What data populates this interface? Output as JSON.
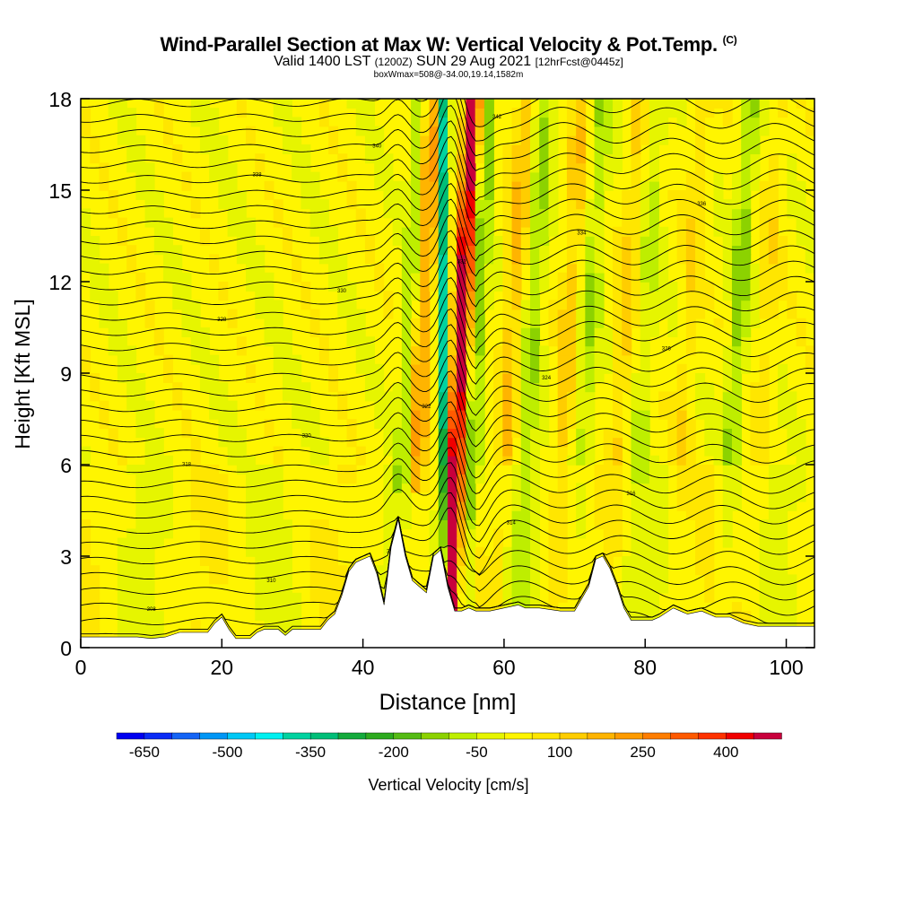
{
  "chart_data": {
    "type": "heatmap",
    "title": "Wind-Parallel Section at Max W: Vertical Velocity & Pot.Temp.",
    "title_mark": "(C)",
    "subtitle_valid": "Valid 1400 LST",
    "subtitle_utc": "(1200Z)",
    "subtitle_date": "SUN 29 Aug 2021",
    "subtitle_fcst": "[12hrFcst@0445z]",
    "box_info": "boxWmax=508@-34.00,19.14,1582m",
    "xlabel": "Distance [nm]",
    "ylabel": "Height [Kft MSL]",
    "xlim": [
      0,
      104
    ],
    "ylim": [
      0,
      18
    ],
    "x_ticks": [
      0,
      20,
      40,
      60,
      80,
      100
    ],
    "y_ticks": [
      0,
      3,
      6,
      9,
      12,
      15,
      18
    ],
    "colorbar": {
      "label": "Vertical Velocity [cm/s]",
      "min": -700,
      "step": 50,
      "colors": [
        "#0000f0",
        "#0a2cf5",
        "#1464f5",
        "#0096f5",
        "#00c8f5",
        "#00f0f0",
        "#00d2a0",
        "#00be78",
        "#14aa3c",
        "#2daa1e",
        "#55bb14",
        "#8cd200",
        "#beee00",
        "#e6f500",
        "#fff500",
        "#ffe600",
        "#ffcd00",
        "#ffb400",
        "#ff9b00",
        "#ff7d00",
        "#ff5a00",
        "#ff3200",
        "#f00000",
        "#c8003c"
      ],
      "tick_labels": [
        "-650",
        "-500",
        "-350",
        "-200",
        "-50",
        "100",
        "250",
        "400"
      ],
      "tick_values": [
        -650,
        -500,
        -350,
        -200,
        -50,
        100,
        250,
        400
      ]
    },
    "terrain": [
      [
        0,
        0.35
      ],
      [
        8,
        0.35
      ],
      [
        10,
        0.3
      ],
      [
        12,
        0.35
      ],
      [
        14,
        0.5
      ],
      [
        18,
        0.5
      ],
      [
        19,
        0.8
      ],
      [
        20,
        1.0
      ],
      [
        21,
        0.6
      ],
      [
        22,
        0.3
      ],
      [
        24,
        0.3
      ],
      [
        25,
        0.5
      ],
      [
        26,
        0.6
      ],
      [
        28,
        0.6
      ],
      [
        29,
        0.4
      ],
      [
        30,
        0.6
      ],
      [
        32,
        0.6
      ],
      [
        34,
        0.6
      ],
      [
        35,
        0.9
      ],
      [
        36,
        1.1
      ],
      [
        37,
        1.7
      ],
      [
        38,
        2.5
      ],
      [
        39,
        2.8
      ],
      [
        40,
        2.9
      ],
      [
        41,
        3.0
      ],
      [
        42,
        2.4
      ],
      [
        43,
        1.4
      ],
      [
        44,
        3.3
      ],
      [
        45,
        4.2
      ],
      [
        46,
        3.0
      ],
      [
        47,
        2.2
      ],
      [
        48,
        2.0
      ],
      [
        49,
        1.8
      ],
      [
        50,
        3.0
      ],
      [
        51,
        3.2
      ],
      [
        52,
        2.0
      ],
      [
        53,
        1.2
      ],
      [
        54,
        1.2
      ],
      [
        55,
        1.3
      ],
      [
        56,
        1.2
      ],
      [
        58,
        1.2
      ],
      [
        62,
        1.4
      ],
      [
        63,
        1.3
      ],
      [
        65,
        1.3
      ],
      [
        68,
        1.2
      ],
      [
        70,
        1.2
      ],
      [
        72,
        2.0
      ],
      [
        73,
        2.9
      ],
      [
        74,
        3.0
      ],
      [
        75,
        2.6
      ],
      [
        76,
        2.0
      ],
      [
        77,
        1.3
      ],
      [
        78,
        0.9
      ],
      [
        80,
        0.9
      ],
      [
        81,
        0.9
      ],
      [
        82,
        1.0
      ],
      [
        84,
        1.3
      ],
      [
        86,
        1.1
      ],
      [
        88,
        1.2
      ],
      [
        90,
        1.0
      ],
      [
        92,
        1.0
      ],
      [
        94,
        0.8
      ],
      [
        96,
        0.7
      ],
      [
        100,
        0.7
      ],
      [
        104,
        0.7
      ]
    ],
    "updraft_band": {
      "x_bottom": 52.5,
      "x_top": 55.5,
      "w_max_cm_s": 508,
      "label": "boxWmax=508"
    },
    "downdraft_band": {
      "x_bottom": 51.0,
      "x_top": 51.5,
      "w_min_cm_s": -400
    },
    "theta_contour_labels": [
      "308",
      "310",
      "312",
      "314",
      "316",
      "318",
      "320",
      "322",
      "324",
      "326",
      "328",
      "330",
      "332",
      "334",
      "336",
      "338",
      "340",
      "342"
    ]
  }
}
